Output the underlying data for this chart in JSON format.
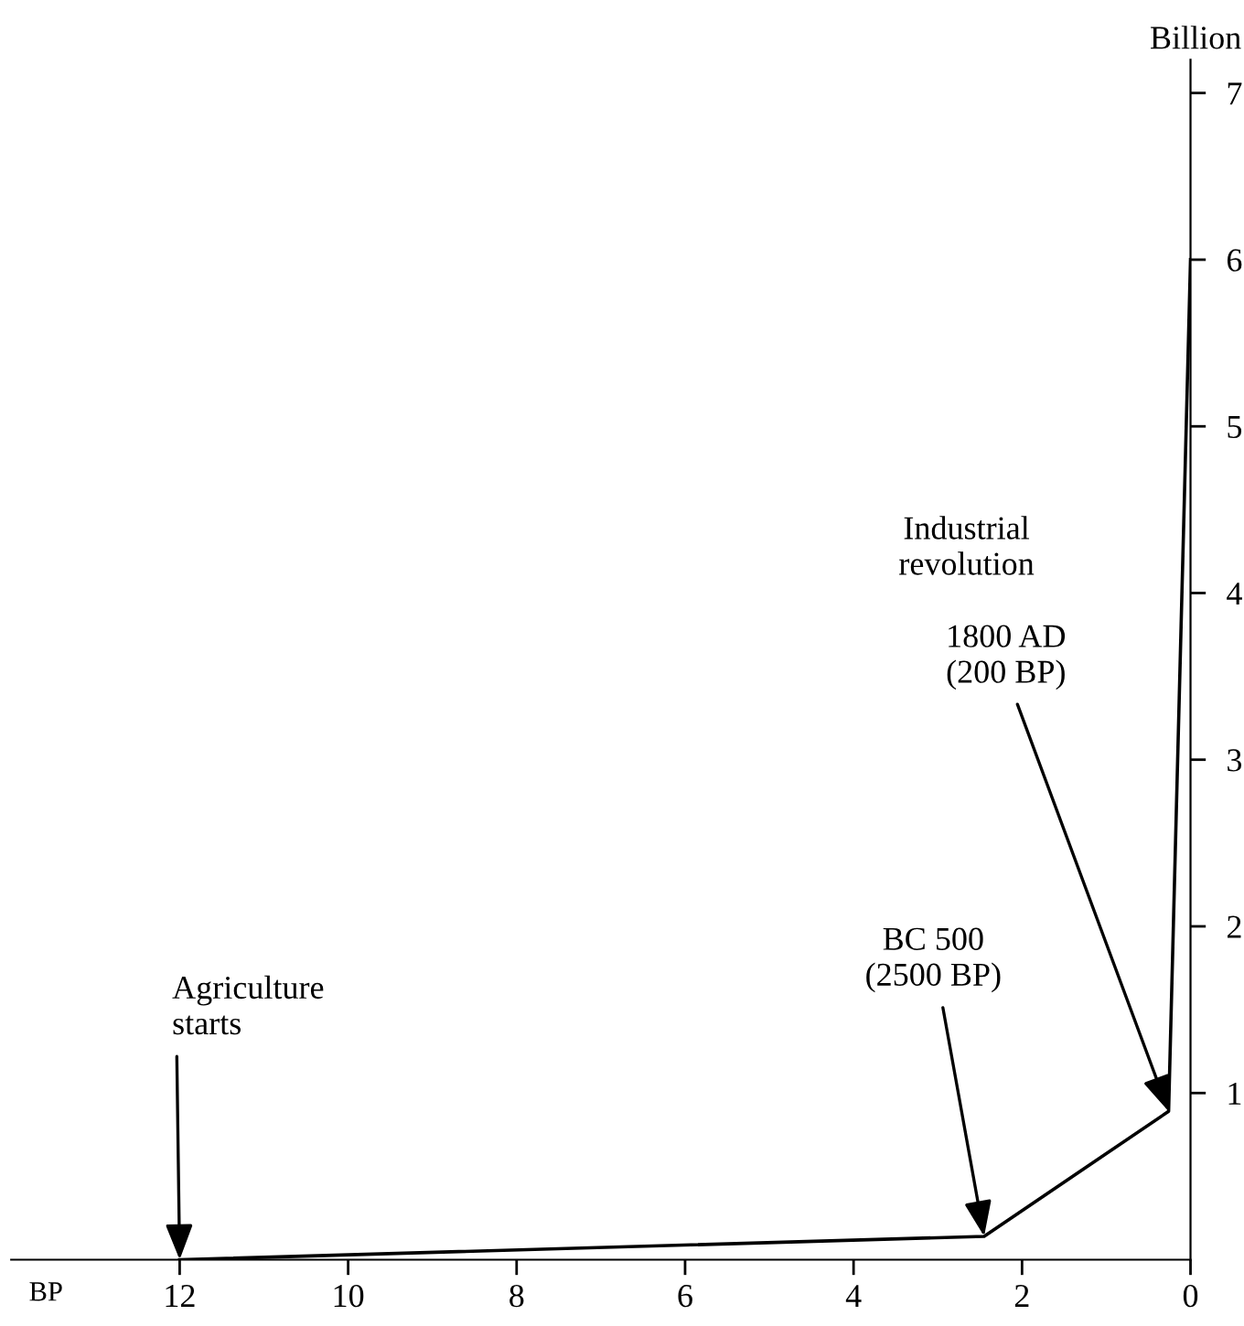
{
  "chart_data": {
    "type": "line",
    "xlabel": "BP",
    "ylabel": "Billion",
    "x": [
      12,
      2.45,
      0.26,
      0
    ],
    "series": [
      {
        "color": "#000000",
        "values": [
          0,
          0.14,
          0.89,
          6.0
        ]
      }
    ],
    "xlim": [
      14,
      0
    ],
    "ylim": [
      0,
      7.2
    ],
    "xticks": [
      12,
      10,
      8,
      6,
      4,
      2,
      0
    ],
    "yticks": [
      1,
      2,
      3,
      4,
      5,
      6,
      7
    ],
    "grid": false,
    "marker": "none",
    "line_style": "solid",
    "annotations": [
      {
        "text": "Agriculture\nstarts",
        "x": 12,
        "y": 0
      },
      {
        "text": "BC 500\n(2500 BP)",
        "x": 2.45,
        "y": 0.14
      },
      "Industrial\nrevolution",
      {
        "text": "1800 AD\n(200 BP)",
        "x": 0.26,
        "y": 0.89
      }
    ]
  }
}
